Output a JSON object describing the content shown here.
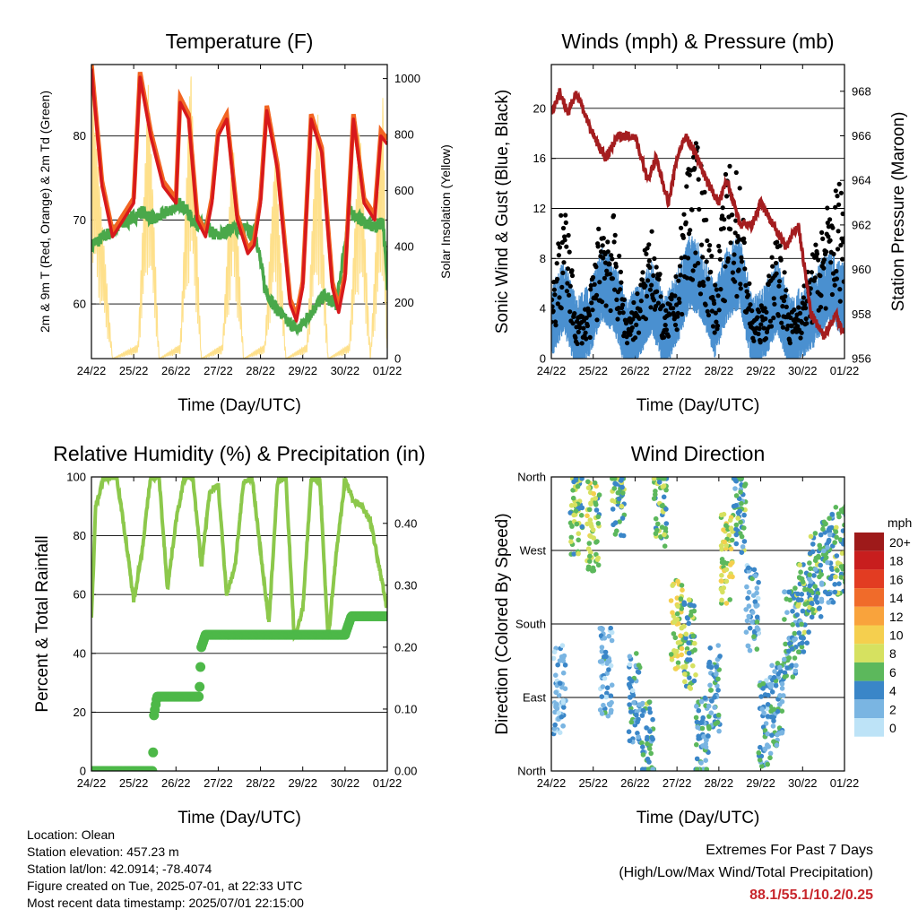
{
  "chart_data": [
    {
      "id": "temperature",
      "type": "line",
      "title": "Temperature (F)",
      "xlabel": "Time (Day/UTC)",
      "ylabel": "2m & 9m T (Red, Orange) & 2m Td (Green)",
      "y2label": "Solar Insolation (Yellow)",
      "x_ticks": [
        "24/22",
        "25/22",
        "26/22",
        "27/22",
        "28/22",
        "29/22",
        "30/22",
        "01/22"
      ],
      "xlim": [
        0,
        7
      ],
      "ylim": [
        53.5,
        88.5
      ],
      "y_ticks": [
        60,
        70,
        80
      ],
      "y2lim": [
        0,
        1050
      ],
      "y2_ticks": [
        0,
        200,
        400,
        600,
        800,
        1000
      ],
      "grid": true,
      "series": [
        {
          "name": "2m T",
          "color": "#d7191c",
          "x": [
            0,
            0.25,
            0.5,
            0.75,
            1.0,
            1.15,
            1.4,
            1.7,
            2.0,
            2.1,
            2.3,
            2.5,
            2.7,
            2.85,
            3.0,
            3.2,
            3.45,
            3.7,
            3.85,
            4.0,
            4.15,
            4.4,
            4.7,
            4.85,
            5.0,
            5.2,
            5.45,
            5.7,
            5.85,
            6.0,
            6.2,
            6.45,
            6.7,
            6.85,
            7.0
          ],
          "y": [
            88,
            74,
            68,
            70,
            72,
            87,
            80,
            74,
            72,
            84,
            82,
            70,
            68,
            72,
            80,
            82,
            70,
            66,
            67,
            72,
            83,
            76,
            60,
            58,
            62,
            82,
            78,
            62,
            59,
            63,
            82,
            72,
            70,
            80,
            79
          ]
        },
        {
          "name": "9m T",
          "color": "#f26522",
          "x": [
            0.5,
            1.6,
            3.4,
            4.6,
            5.5,
            6.4,
            6.7
          ],
          "y": [
            68.5,
            73,
            70,
            60.5,
            78,
            72,
            70.5
          ]
        },
        {
          "name": "2m Td",
          "color": "#4aa84a",
          "x": [
            0,
            0.3,
            0.6,
            0.9,
            1.2,
            1.5,
            1.8,
            2.1,
            2.4,
            2.7,
            3.0,
            3.3,
            3.6,
            3.9,
            4.1,
            4.3,
            4.6,
            4.9,
            5.2,
            5.5,
            5.8,
            6.1,
            6.4,
            6.7,
            6.9,
            7.0
          ],
          "y": [
            67,
            68,
            69,
            70,
            71,
            70,
            71,
            72,
            70,
            69,
            68,
            69,
            69,
            68,
            62,
            60,
            58,
            57,
            59,
            61,
            60,
            71,
            70,
            69,
            70,
            62
          ]
        },
        {
          "name": "Solar Insolation",
          "color": "#fee08b",
          "axis": "right",
          "x": [
            0,
            0.5,
            1.1,
            1.35,
            1.6,
            2.1,
            2.35,
            2.6,
            3.1,
            3.35,
            3.6,
            4.1,
            4.35,
            4.6,
            5.1,
            5.35,
            5.6,
            6.1,
            6.35,
            6.6,
            6.9,
            7.0
          ],
          "y": [
            1000,
            0,
            50,
            1000,
            0,
            50,
            1050,
            0,
            50,
            800,
            0,
            50,
            750,
            0,
            50,
            900,
            0,
            50,
            850,
            0,
            950,
            0
          ]
        }
      ]
    },
    {
      "id": "winds",
      "type": "scatter",
      "title": "Winds (mph) & Pressure (mb)",
      "xlabel": "Time (Day/UTC)",
      "ylabel": "Sonic Wind & Gust (Blue, Black)",
      "y2label": "Station Pressure (Maroon)",
      "x_ticks": [
        "24/22",
        "25/22",
        "26/22",
        "27/22",
        "28/22",
        "29/22",
        "30/22",
        "01/22"
      ],
      "xlim": [
        0,
        7
      ],
      "ylim": [
        0,
        23.5
      ],
      "y_ticks": [
        0,
        4,
        8,
        12,
        16,
        20
      ],
      "y2lim": [
        956,
        969.2
      ],
      "y2_ticks": [
        956,
        958,
        960,
        962,
        964,
        966,
        968
      ],
      "grid": true,
      "series": [
        {
          "name": "Sonic Wind",
          "color": "#4a90d0",
          "x": [
            0,
            0.3,
            0.6,
            0.9,
            1.2,
            1.5,
            1.8,
            2.1,
            2.4,
            2.7,
            3.0,
            3.3,
            3.6,
            3.9,
            4.2,
            4.5,
            4.8,
            5.1,
            5.4,
            5.7,
            6.0,
            6.3,
            6.6,
            6.9
          ],
          "y": [
            3,
            5,
            2,
            3,
            6,
            5,
            2,
            3,
            5,
            2,
            4,
            7,
            6,
            3,
            6,
            7,
            2,
            3,
            5,
            2,
            3,
            4,
            6,
            5
          ]
        },
        {
          "name": "Gust",
          "color": "#000000",
          "x": [
            0,
            0.3,
            0.6,
            0.9,
            1.2,
            1.5,
            1.8,
            2.1,
            2.4,
            2.7,
            3.0,
            3.3,
            3.6,
            3.9,
            4.2,
            4.5,
            4.8,
            5.1,
            5.4,
            5.7,
            6.0,
            6.3,
            6.6,
            6.9
          ],
          "y": [
            4,
            12,
            3,
            4,
            11,
            10,
            3,
            5,
            11,
            3,
            6,
            16,
            14,
            5,
            14,
            13,
            3,
            4,
            10,
            3,
            5,
            8,
            11,
            13
          ]
        },
        {
          "name": "Station Pressure",
          "color": "#a41d1f",
          "axis": "right",
          "x": [
            0,
            0.2,
            0.4,
            0.6,
            0.8,
            1.0,
            1.3,
            1.6,
            2.0,
            2.3,
            2.5,
            2.8,
            3.0,
            3.2,
            3.5,
            3.7,
            4.0,
            4.2,
            4.5,
            4.8,
            5.0,
            5.3,
            5.6,
            5.9,
            6.2,
            6.5,
            6.8,
            7.0
          ],
          "y": [
            967,
            968,
            967,
            968,
            967,
            966,
            965,
            966,
            966,
            964,
            965,
            963,
            965,
            966,
            965,
            964,
            963,
            964,
            962,
            962,
            963,
            962,
            961,
            962,
            958,
            957,
            958,
            957
          ]
        }
      ]
    },
    {
      "id": "humidity",
      "type": "line",
      "title": "Relative Humidity (%) & Precipitation (in)",
      "xlabel": "Time (Day/UTC)",
      "ylabel": "Percent & Total Rainfall",
      "x_ticks": [
        "24/22",
        "25/22",
        "26/22",
        "27/22",
        "28/22",
        "29/22",
        "30/22",
        "01/22"
      ],
      "xlim": [
        0,
        7
      ],
      "ylim": [
        0,
        100
      ],
      "y_ticks": [
        0,
        20,
        40,
        60,
        80,
        100
      ],
      "y2lim": [
        0,
        0.475
      ],
      "y2_ticks": [
        0.0,
        0.1,
        0.2,
        0.3,
        0.4
      ],
      "y2_tick_labels": [
        "0.00",
        "0.10",
        "0.20",
        "0.30",
        "0.40"
      ],
      "grid": true,
      "series": [
        {
          "name": "Relative Humidity",
          "color": "#8cc84b",
          "x": [
            0,
            0.1,
            0.3,
            0.6,
            0.8,
            1.0,
            1.2,
            1.4,
            1.6,
            1.8,
            2.0,
            2.2,
            2.4,
            2.6,
            2.8,
            3.0,
            3.2,
            3.4,
            3.6,
            3.8,
            4.0,
            4.2,
            4.4,
            4.6,
            4.8,
            5.0,
            5.2,
            5.4,
            5.6,
            5.8,
            6.0,
            6.2,
            6.4,
            6.6,
            6.8,
            7.0
          ],
          "y": [
            52,
            90,
            100,
            100,
            80,
            58,
            75,
            100,
            100,
            62,
            85,
            100,
            100,
            70,
            95,
            97,
            60,
            70,
            98,
            100,
            75,
            50,
            98,
            100,
            45,
            55,
            99,
            100,
            45,
            75,
            99,
            92,
            90,
            85,
            70,
            55
          ]
        },
        {
          "name": "Total Precipitation",
          "color": "#4db848",
          "axis": "right",
          "x": [
            0,
            1.45,
            1.48,
            1.55,
            2.4,
            2.55,
            2.6,
            2.7,
            6.0,
            6.1,
            6.15,
            7.0
          ],
          "y": [
            0,
            0,
            0.09,
            0.12,
            0.12,
            0.12,
            0.2,
            0.22,
            0.22,
            0.24,
            0.25,
            0.25
          ]
        }
      ]
    },
    {
      "id": "wind_direction",
      "type": "scatter",
      "title": "Wind Direction",
      "xlabel": "Time (Day/UTC)",
      "ylabel": "Direction (Colored By Speed)",
      "x_ticks": [
        "24/22",
        "25/22",
        "26/22",
        "27/22",
        "28/22",
        "29/22",
        "30/22",
        "01/22"
      ],
      "xlim": [
        0,
        7
      ],
      "ylim": [
        0,
        360
      ],
      "y_ticks": [
        0,
        90,
        180,
        270,
        360
      ],
      "y_tick_labels": [
        "North",
        "East",
        "South",
        "West",
        "North"
      ],
      "grid": true,
      "legend_title": "mph",
      "legend_labels": [
        "20+",
        "18",
        "16",
        "14",
        "12",
        "10",
        "8",
        "6",
        "4",
        "2",
        "0"
      ],
      "legend_colors": [
        "#9e1a1a",
        "#c81e1e",
        "#e23c22",
        "#f06b2a",
        "#f9a33c",
        "#f5cf4e",
        "#d6e160",
        "#5cb85c",
        "#3a86c8",
        "#7ab5e2",
        "#bde3f7"
      ],
      "legend_placement": "right",
      "clusters": [
        {
          "x": 0.2,
          "dir": 100,
          "speed": 2
        },
        {
          "x": 0.6,
          "dir": 320,
          "speed": 6
        },
        {
          "x": 1.0,
          "dir": 300,
          "speed": 7
        },
        {
          "x": 1.3,
          "dir": 120,
          "speed": 3
        },
        {
          "x": 1.6,
          "dir": 340,
          "speed": 6
        },
        {
          "x": 2.0,
          "dir": 90,
          "speed": 3
        },
        {
          "x": 2.3,
          "dir": 30,
          "speed": 5
        },
        {
          "x": 2.6,
          "dir": 330,
          "speed": 6
        },
        {
          "x": 3.0,
          "dir": 180,
          "speed": 8
        },
        {
          "x": 3.3,
          "dir": 155,
          "speed": 6
        },
        {
          "x": 3.6,
          "dir": 40,
          "speed": 4
        },
        {
          "x": 3.9,
          "dir": 100,
          "speed": 4
        },
        {
          "x": 4.2,
          "dir": 260,
          "speed": 8
        },
        {
          "x": 4.5,
          "dir": 320,
          "speed": 5
        },
        {
          "x": 4.8,
          "dir": 200,
          "speed": 3
        },
        {
          "x": 5.1,
          "dir": 60,
          "speed": 3
        },
        {
          "x": 5.4,
          "dir": 80,
          "speed": 4
        },
        {
          "x": 5.7,
          "dir": 170,
          "speed": 4
        },
        {
          "x": 6.0,
          "dir": 200,
          "speed": 5
        },
        {
          "x": 6.3,
          "dir": 240,
          "speed": 5
        },
        {
          "x": 6.6,
          "dir": 260,
          "speed": 4
        },
        {
          "x": 6.9,
          "dir": 270,
          "speed": 6
        }
      ]
    }
  ],
  "station": {
    "location": "Location: Olean",
    "elevation": "Station elevation: 457.23 m",
    "latlon": "Station lat/lon: 42.0914; -78.4074",
    "created": "Figure created on Tue, 2025-07-01, at 22:33 UTC",
    "recent": "Most recent data timestamp: 2025/07/01 22:15:00"
  },
  "extremes": {
    "title": "Extremes For Past 7 Days",
    "subtitle": "(High/Low/Max Wind/Total Precipitation)",
    "values": "88.1/55.1/10.2/0.25"
  }
}
